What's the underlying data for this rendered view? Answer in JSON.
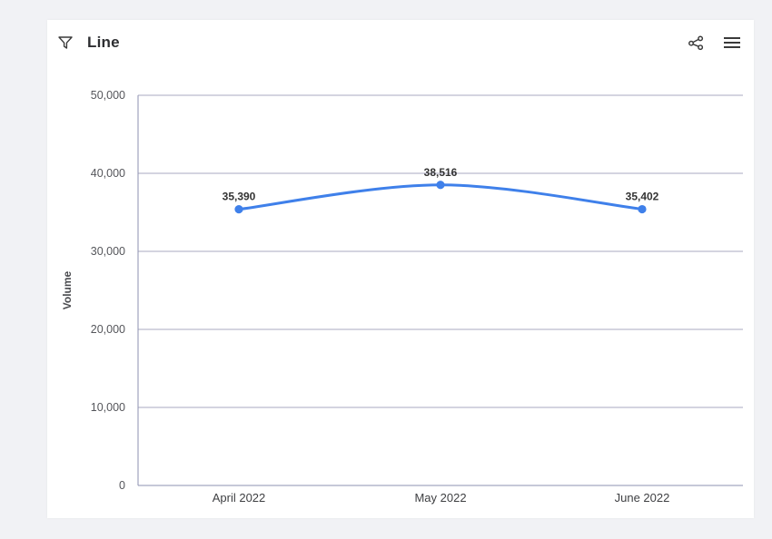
{
  "page": {
    "background": "#f1f2f5",
    "card_background": "#ffffff"
  },
  "header": {
    "title": "Line",
    "filter_icon": "filter-funnel",
    "share_icon": "share-network",
    "menu_icon": "hamburger-menu",
    "icon_color": "#3a3a3a"
  },
  "chart_data": {
    "type": "line",
    "title": "Line",
    "categories": [
      "April 2022",
      "May 2022",
      "June 2022"
    ],
    "series": [
      {
        "name": "Volume",
        "values": [
          35390,
          38516,
          35402
        ],
        "color": "#3f80ea"
      }
    ],
    "data_labels": [
      "35,390",
      "38,516",
      "35,402"
    ],
    "xlabel": "",
    "ylabel": "Volume",
    "ylim": [
      0,
      50000
    ],
    "ytick_values": [
      0,
      10000,
      20000,
      30000,
      40000,
      50000
    ],
    "ytick_labels": [
      "0",
      "10,000",
      "20,000",
      "30,000",
      "40,000",
      "50,000"
    ],
    "grid": true,
    "smooth": true,
    "legend_position": "none",
    "marker_radius": 4.6,
    "colors": {
      "line": "#3f80ea",
      "marker": "#3f80ea",
      "grid": "#a9aac0",
      "axis": "#8e91b0",
      "tick_label": "#55565b",
      "x_tick_label": "#3f4043",
      "data_label": "#333333",
      "axis_title": "#4a4b4f"
    }
  }
}
